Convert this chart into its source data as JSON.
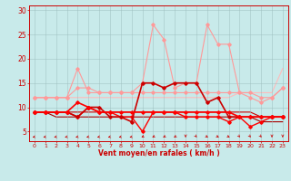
{
  "title": "",
  "xlabel": "Vent moyen/en rafales ( km/h )",
  "xlim": [
    -0.5,
    23.5
  ],
  "ylim": [
    3,
    31
  ],
  "yticks": [
    5,
    10,
    15,
    20,
    25,
    30
  ],
  "xticks": [
    0,
    1,
    2,
    3,
    4,
    5,
    6,
    7,
    8,
    9,
    10,
    11,
    12,
    13,
    14,
    15,
    16,
    17,
    18,
    19,
    20,
    21,
    22,
    23
  ],
  "bg_color": "#c8eaea",
  "grid_color": "#9bbcbc",
  "lines": [
    {
      "x": [
        0,
        1,
        2,
        3,
        4,
        5,
        6,
        7,
        8,
        9,
        10,
        11,
        12,
        13,
        14,
        15,
        16,
        17,
        18,
        19,
        20,
        21,
        22,
        23
      ],
      "y": [
        12,
        12,
        12,
        12,
        18,
        13,
        13,
        13,
        13,
        13,
        15,
        27,
        24,
        14,
        15,
        15,
        27,
        23,
        23,
        13,
        12,
        11,
        12,
        14
      ],
      "color": "#ff9999",
      "lw": 0.8,
      "marker": "D",
      "ms": 1.8,
      "zorder": 2
    },
    {
      "x": [
        0,
        1,
        2,
        3,
        4,
        5,
        6,
        7,
        8,
        9,
        10,
        11,
        12,
        13,
        14,
        15,
        16,
        17,
        18,
        19,
        20,
        21,
        22,
        23
      ],
      "y": [
        12,
        12,
        12,
        12,
        14,
        14,
        13,
        13,
        13,
        13,
        13,
        13,
        13,
        13,
        13,
        13,
        13,
        13,
        13,
        13,
        13,
        12,
        12,
        14
      ],
      "color": "#ff9999",
      "lw": 0.8,
      "marker": "D",
      "ms": 1.8,
      "zorder": 2
    },
    {
      "x": [
        0,
        1,
        2,
        3,
        4,
        5,
        6,
        7,
        8,
        9,
        10,
        11,
        12,
        13,
        14,
        15,
        16,
        17,
        18,
        19,
        20,
        21,
        22,
        23
      ],
      "y": [
        12,
        12,
        12,
        12,
        12,
        12,
        12,
        12,
        12,
        12,
        12,
        12,
        12,
        12,
        12,
        12,
        12,
        12,
        12,
        13,
        13,
        13,
        13,
        18
      ],
      "color": "#ffbbbb",
      "lw": 0.8,
      "marker": null,
      "ms": 0,
      "zorder": 1
    },
    {
      "x": [
        0,
        1,
        2,
        3,
        4,
        5,
        6,
        7,
        8,
        9,
        10,
        11,
        12,
        13,
        14,
        15,
        16,
        17,
        18,
        19,
        20,
        21,
        22,
        23
      ],
      "y": [
        9,
        9,
        9,
        9,
        8,
        10,
        10,
        8,
        8,
        7,
        15,
        15,
        14,
        15,
        15,
        15,
        11,
        12,
        8,
        8,
        8,
        8,
        8,
        8
      ],
      "color": "#cc0000",
      "lw": 1.2,
      "marker": "D",
      "ms": 1.8,
      "zorder": 3
    },
    {
      "x": [
        0,
        1,
        2,
        3,
        4,
        5,
        6,
        7,
        8,
        9,
        10,
        11,
        12,
        13,
        14,
        15,
        16,
        17,
        18,
        19,
        20,
        21,
        22,
        23
      ],
      "y": [
        9,
        9,
        9,
        9,
        9,
        9,
        9,
        9,
        9,
        9,
        9,
        9,
        9,
        9,
        9,
        9,
        9,
        9,
        9,
        9,
        9,
        8,
        8,
        8
      ],
      "color": "#cc0000",
      "lw": 0.8,
      "marker": null,
      "ms": 0,
      "zorder": 1
    },
    {
      "x": [
        0,
        1,
        2,
        3,
        4,
        5,
        6,
        7,
        8,
        9,
        10,
        11,
        12,
        13,
        14,
        15,
        16,
        17,
        18,
        19,
        20,
        21,
        22,
        23
      ],
      "y": [
        9,
        9,
        9,
        9,
        8,
        10,
        9,
        9,
        8,
        8,
        5,
        9,
        9,
        9,
        8,
        8,
        8,
        8,
        7,
        8,
        6,
        7,
        8,
        8
      ],
      "color": "#ff0000",
      "lw": 1.0,
      "marker": "D",
      "ms": 1.8,
      "zorder": 2
    },
    {
      "x": [
        0,
        1,
        2,
        3,
        4,
        5,
        6,
        7,
        8,
        9,
        10,
        11,
        12,
        13,
        14,
        15,
        16,
        17,
        18,
        19,
        20,
        21,
        22,
        23
      ],
      "y": [
        9,
        9,
        8,
        8,
        8,
        8,
        8,
        8,
        8,
        8,
        8,
        8,
        8,
        8,
        8,
        8,
        8,
        8,
        8,
        8,
        8,
        7,
        7,
        7
      ],
      "color": "#aa0000",
      "lw": 0.8,
      "marker": null,
      "ms": 0,
      "zorder": 1
    },
    {
      "x": [
        0,
        1,
        2,
        3,
        4,
        5,
        6,
        7,
        8,
        9,
        10,
        11,
        12,
        13,
        14,
        15,
        16,
        17,
        18,
        19,
        20,
        21,
        22,
        23
      ],
      "y": [
        9,
        9,
        9,
        9,
        11,
        10,
        9,
        9,
        9,
        9,
        9,
        9,
        9,
        9,
        9,
        9,
        9,
        9,
        9,
        8,
        8,
        8,
        8,
        8
      ],
      "color": "#ff0000",
      "lw": 1.2,
      "marker": "D",
      "ms": 1.8,
      "zorder": 3
    }
  ],
  "arrow_color": "#cc0000",
  "arrow_angles": [
    225,
    225,
    225,
    225,
    225,
    225,
    225,
    225,
    225,
    225,
    200,
    200,
    200,
    200,
    180,
    170,
    160,
    160,
    160,
    170,
    170,
    170,
    180,
    180
  ]
}
